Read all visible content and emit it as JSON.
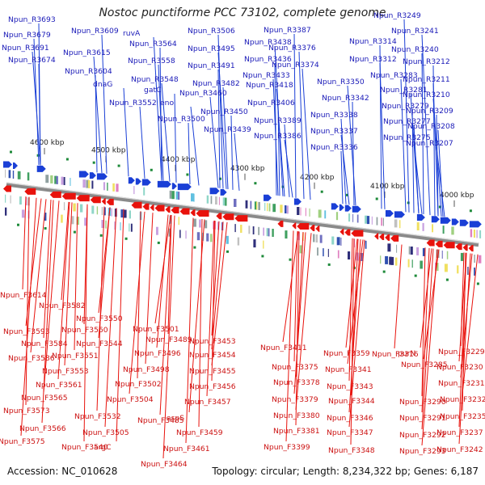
{
  "title": "Nostoc punctiforme PCC 73102, complete genome",
  "accession_text": "Accession: NC_010628",
  "summary_text": "Topology: circular; Length: 8,234,322 bp; Genes: 6,187",
  "colors": {
    "forward": "#1a3fd6",
    "reverse": "#e8120c",
    "forward_label": "#1a1ab8",
    "reverse_label": "#cc1111",
    "backbone": "#8a8a8a",
    "rna_marker": "#1e8a3a"
  },
  "ruler": {
    "ticks": [
      {
        "label": "4600 kbp"
      },
      {
        "label": "4500 kbp"
      },
      {
        "label": "4400 kbp"
      },
      {
        "label": "4300 kbp"
      },
      {
        "label": "4200 kbp"
      },
      {
        "label": "4100 kbp"
      },
      {
        "label": "4000 kbp"
      }
    ]
  },
  "forward_labels": [
    "Npun_R3693",
    "Npun_R3679",
    "Npun_R3691",
    "Npun_R3674",
    "Npun_R3609",
    "Npun_R3615",
    "Npun_R3604",
    "dnaG",
    "ruvA",
    "Npun_R3564",
    "Npun_R3558",
    "Npun_R3548",
    "gatC",
    "Npun_R3552",
    "eno",
    "Npun_R3500",
    "Npun_R3506",
    "Npun_R3495",
    "Npun_R3491",
    "Npun_R3482",
    "Npun_R3460",
    "Npun_R3450",
    "Npun_R3439",
    "Npun_R3438",
    "Npun_R3436",
    "Npun_R3433",
    "Npun_R3418",
    "Npun_R3406",
    "Npun_R3389",
    "Npun_R3386",
    "Npun_R3387",
    "Npun_R3376",
    "Npun_R3374",
    "Npun_R3314",
    "Npun_R3312",
    "Npun_R3350",
    "Npun_R3342",
    "Npun_R3338",
    "Npun_R3337",
    "Npun_R3336",
    "Npun_R3249",
    "Npun_R3241",
    "Npun_R3240",
    "Npun_R3283",
    "Npun_R3281",
    "Npun_R3279",
    "Npun_R3277",
    "Npun_R3275",
    "Npun_R3212",
    "Npun_R3211",
    "Npun_R3210",
    "Npun_R3209",
    "Npun_R3208",
    "Npun_R3207"
  ],
  "reverse_labels": [
    "Npun_F3614",
    "Npun_F3582",
    "Npun_F3550",
    "Npun_F3593",
    "Npun_F3560",
    "Npun_F3584",
    "Npun_F3544",
    "Npun_F3586",
    "Npun_F3551",
    "Npun_F3553",
    "Npun_F3561",
    "Npun_F3565",
    "Npun_F3573",
    "Npun_F3532",
    "Npun_F3566",
    "Npun_F3575",
    "Npun_F3540",
    "argC",
    "Npun_F3505",
    "Npun_F3504",
    "Npun_F3502",
    "Npun_F3498",
    "Npun_F3496",
    "Npun_F3501",
    "Npun_F3489",
    "Npun_F3453",
    "Npun_F3454",
    "Npun_F3455",
    "Npun_F3456",
    "Npun_F3457",
    "Npun_F3485",
    "aspS",
    "Npun_F3459",
    "Npun_F3461",
    "Npun_F3464",
    "Npun_F3411",
    "Npun_F3375",
    "Npun_F3378",
    "Npun_F3379",
    "Npun_F3380",
    "Npun_F3381",
    "Npun_F3399",
    "Npun_F3359",
    "Npun_F3341",
    "Npun_F3343",
    "Npun_F3344",
    "Npun_F3346",
    "Npun_F3347",
    "Npun_F3348",
    "Npun_F3316",
    "purN",
    "Npun_F3285",
    "Npun_F3290",
    "Npun_F3291",
    "Npun_F3292",
    "Npun_F3293",
    "Npun_F3229",
    "Npun_F3230",
    "Npun_F3231",
    "Npun_F3232",
    "Npun_F3235",
    "Npun_F3237",
    "Npun_F3242"
  ]
}
